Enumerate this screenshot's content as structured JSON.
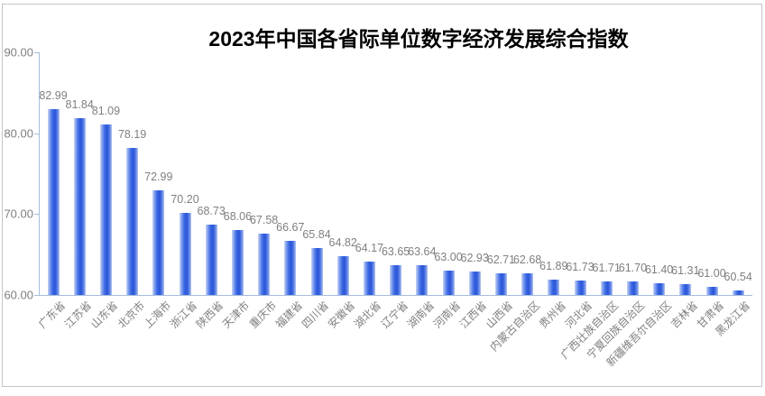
{
  "title": "2023年中国各省际单位数字经济发展综合指数",
  "chart_data": {
    "type": "bar",
    "title": "2023年中国各省际单位数字经济发展综合指数",
    "categories": [
      "广东省",
      "江苏省",
      "山东省",
      "北京市",
      "上海市",
      "浙江省",
      "陕西省",
      "天津市",
      "重庆市",
      "福建省",
      "四川省",
      "安徽省",
      "湖北省",
      "辽宁省",
      "湖南省",
      "河南省",
      "江西省",
      "山西省",
      "内蒙古自治区",
      "贵州省",
      "河北省",
      "广西壮族自治区",
      "宁夏回族自治区",
      "新疆维吾尔自治区",
      "吉林省",
      "甘肃省",
      "黑龙江省"
    ],
    "values": [
      82.99,
      81.84,
      81.09,
      78.19,
      72.99,
      70.2,
      68.73,
      68.06,
      67.58,
      66.67,
      65.84,
      64.82,
      64.17,
      63.65,
      63.64,
      63.0,
      62.93,
      62.71,
      62.68,
      61.89,
      61.73,
      61.71,
      61.7,
      61.4,
      61.31,
      61.0,
      60.54
    ],
    "value_labels": [
      "82.99",
      "81.84",
      "81.09",
      "78.19",
      "72.99",
      "70.20",
      "68.73",
      "68.06",
      "67.58",
      "66.67",
      "65.84",
      "64.82",
      "64.17",
      "63.65",
      "63.64",
      "63.00",
      "62.93",
      "62.71",
      "62.68",
      "61.89",
      "61.73",
      "61.71",
      "61.70",
      "61.40",
      "61.31",
      "61.00",
      "60.54"
    ],
    "xlabel": "",
    "ylabel": "",
    "ylim": [
      60,
      90
    ],
    "ytick_labels": [
      "90.00",
      "80.00",
      "70.00",
      "60.00"
    ],
    "ytick_values": [
      90,
      80,
      70,
      60
    ],
    "grid": false,
    "legend_position": "none",
    "colors": {
      "bar_edge_left": "#CCD8F6",
      "bar_light": "#8AA6EE",
      "bar_bright": "#3B68E4",
      "bar_dark": "#2A55D8",
      "bar_mid_right": "#5C81E6",
      "bar_edge_right": "#B7C6F2",
      "axis_line": "#A7BDDB",
      "tick_label": "#7F7F7F",
      "data_label": "#7F7F7F",
      "title_text": "#000000",
      "chart_border": "#C5C5C5",
      "background": "#FFFFFF"
    }
  }
}
